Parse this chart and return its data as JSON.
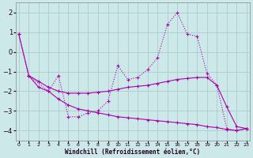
{
  "xlabel": "Windchill (Refroidissement éolien,°C)",
  "background_color": "#cce8e8",
  "grid_color": "#aacccc",
  "line_color": "#aa00aa",
  "ylim": [
    -4.5,
    2.5
  ],
  "yticks": [
    -4,
    -3,
    -2,
    -1,
    0,
    1,
    2
  ],
  "xticks": [
    0,
    1,
    2,
    3,
    4,
    5,
    6,
    7,
    8,
    9,
    10,
    11,
    12,
    13,
    14,
    15,
    16,
    17,
    18,
    19,
    20,
    21,
    22,
    23
  ],
  "xlim": [
    -0.3,
    23.3
  ],
  "series1_x": [
    0,
    1,
    3,
    4,
    5,
    6,
    7,
    8,
    9,
    10,
    11,
    12,
    13,
    14,
    15,
    16,
    17,
    18,
    19,
    20,
    21,
    22,
    23
  ],
  "series1_y": [
    0.9,
    -1.2,
    -2.0,
    -1.2,
    -3.3,
    -3.3,
    -3.1,
    -3.0,
    -2.5,
    -0.7,
    -1.4,
    -1.3,
    -0.9,
    -0.3,
    1.4,
    2.0,
    0.9,
    0.8,
    -1.1,
    -1.7,
    -3.9,
    -4.0,
    -3.9
  ],
  "series2_x": [
    1,
    2,
    3,
    4,
    5,
    6,
    7,
    8,
    9,
    10,
    11,
    12,
    13,
    14,
    15,
    16,
    17,
    18,
    19,
    20,
    21,
    22,
    23
  ],
  "series2_y": [
    -1.2,
    -1.5,
    -1.8,
    -2.0,
    -2.1,
    -2.1,
    -2.1,
    -2.05,
    -2.0,
    -1.9,
    -1.8,
    -1.75,
    -1.7,
    -1.6,
    -1.5,
    -1.4,
    -1.35,
    -1.3,
    -1.3,
    -1.7,
    -2.8,
    -3.8,
    -3.9
  ],
  "series3_x": [
    0,
    1,
    2,
    3,
    4,
    5,
    6,
    7,
    8,
    9,
    10,
    11,
    12,
    13,
    14,
    15,
    16,
    17,
    18,
    19,
    20,
    21,
    22,
    23
  ],
  "series3_y": [
    0.9,
    -1.2,
    -1.8,
    -2.0,
    -2.4,
    -2.7,
    -2.9,
    -3.0,
    -3.1,
    -3.2,
    -3.3,
    -3.35,
    -3.4,
    -3.45,
    -3.5,
    -3.55,
    -3.6,
    -3.65,
    -3.7,
    -3.8,
    -3.85,
    -3.95,
    -4.0,
    -3.9
  ]
}
